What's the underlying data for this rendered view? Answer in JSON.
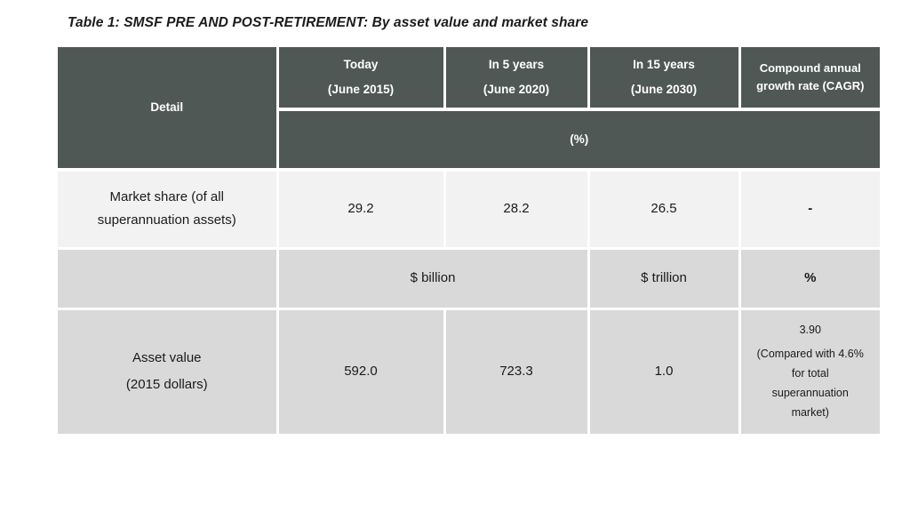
{
  "title": "Table 1: SMSF PRE AND POST-RETIREMENT: By asset value and market share",
  "colors": {
    "header_bg": "#505855",
    "header_text": "#ffffff",
    "market_share_row_bg": "#f2f2f2",
    "gray_row_bg": "#d9d9d9",
    "body_text": "#1a1a1a",
    "page_bg": "#ffffff"
  },
  "table": {
    "corner_label": "Detail",
    "column_headers": [
      {
        "line1": "Today",
        "line2": "(June 2015)"
      },
      {
        "line1": "In 5 years",
        "line2": "(June 2020)"
      },
      {
        "line1": "In 15 years",
        "line2": "(June 2030)"
      },
      {
        "line1": "Compound annual",
        "line2": "growth rate (CAGR)"
      }
    ],
    "unit_subheader": "(%)",
    "market_share_row": {
      "label_line1": "Market share (of all",
      "label_line2": "superannuation assets)",
      "values": {
        "today": "29.2",
        "in_5_years": "28.2",
        "in_15_years": "26.5",
        "cagr": "-"
      }
    },
    "units_row": {
      "billion_label": "$ billion",
      "trillion_label": "$ trillion",
      "percent_label": "%"
    },
    "asset_value_row": {
      "label_line1": "Asset value",
      "label_line2": "(2015 dollars)",
      "values": {
        "today": "592.0",
        "in_5_years": "723.3",
        "in_15_years": "1.0"
      },
      "cagr_value": "3.90",
      "cagr_note": "(Compared with 4.6% for total superannuation market)"
    }
  },
  "chart_data": {
    "type": "table",
    "title": "Table 1: SMSF PRE AND POST-RETIREMENT: By asset value and market share",
    "columns": [
      "Detail",
      "Today (June 2015)",
      "In 5 years (June 2020)",
      "In 15 years (June 2030)",
      "Compound annual growth rate (CAGR)"
    ],
    "rows": [
      {
        "detail": "Market share (of all superannuation assets)",
        "unit": "%",
        "today": 29.2,
        "in_5_years": 28.2,
        "in_15_years": 26.5,
        "cagr": null
      },
      {
        "detail": "Asset value (2015 dollars)",
        "today": 592.0,
        "today_unit": "$ billion",
        "in_5_years": 723.3,
        "in_5_years_unit": "$ billion",
        "in_15_years": 1.0,
        "in_15_years_unit": "$ trillion",
        "cagr": 3.9,
        "cagr_unit": "%",
        "cagr_note": "(Compared with 4.6% for total superannuation market)"
      }
    ]
  }
}
